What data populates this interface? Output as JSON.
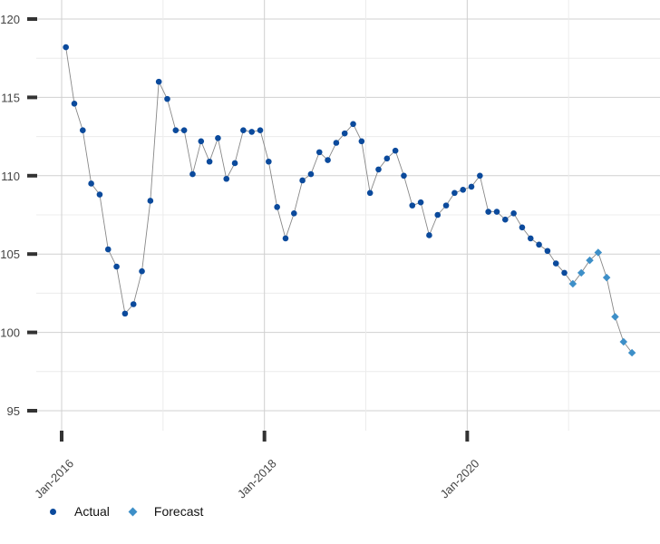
{
  "chart_data": {
    "type": "line",
    "title": "",
    "xlabel": "",
    "ylabel": "",
    "ylim": [
      95,
      120
    ],
    "yticks": [
      95,
      100,
      105,
      110,
      115,
      120
    ],
    "xticks": [
      {
        "date": "2016-01",
        "label": "Jan-2016"
      },
      {
        "date": "2018-01",
        "label": "Jan-2018"
      },
      {
        "date": "2020-01",
        "label": "Jan-2020"
      }
    ],
    "grid": true,
    "legend_position": "bottom-left",
    "series": [
      {
        "name": "Actual",
        "color": "#0b4a9c",
        "marker": "circle",
        "x": [
          "2016-01",
          "2016-02",
          "2016-03",
          "2016-04",
          "2016-05",
          "2016-06",
          "2016-07",
          "2016-08",
          "2016-09",
          "2016-10",
          "2016-11",
          "2016-12",
          "2017-01",
          "2017-02",
          "2017-03",
          "2017-04",
          "2017-05",
          "2017-06",
          "2017-07",
          "2017-08",
          "2017-09",
          "2017-10",
          "2017-11",
          "2017-12",
          "2018-01",
          "2018-02",
          "2018-03",
          "2018-04",
          "2018-05",
          "2018-06",
          "2018-07",
          "2018-08",
          "2018-09",
          "2018-10",
          "2018-11",
          "2018-12",
          "2019-01",
          "2019-02",
          "2019-03",
          "2019-04",
          "2019-05",
          "2019-06",
          "2019-07",
          "2019-08",
          "2019-09",
          "2019-10",
          "2019-11",
          "2019-12",
          "2020-01",
          "2020-02",
          "2020-03",
          "2020-04",
          "2020-05",
          "2020-06",
          "2020-07",
          "2020-08",
          "2020-09",
          "2020-10",
          "2020-11",
          "2020-12"
        ],
        "values": [
          118.2,
          114.6,
          112.9,
          109.5,
          108.8,
          105.3,
          104.2,
          101.2,
          101.8,
          103.9,
          108.4,
          116.0,
          114.9,
          112.9,
          112.9,
          110.1,
          112.2,
          110.9,
          112.4,
          109.8,
          110.8,
          112.9,
          112.8,
          112.9,
          110.9,
          108.0,
          106.0,
          107.6,
          109.7,
          110.1,
          111.5,
          111.0,
          112.1,
          112.7,
          113.3,
          112.2,
          108.9,
          110.4,
          111.1,
          111.6,
          110.0,
          108.1,
          108.3,
          106.2,
          107.5,
          108.1,
          108.9,
          109.1,
          109.3,
          110.0,
          107.7,
          107.7,
          107.2,
          107.6,
          106.7,
          106.0,
          105.6,
          105.2,
          104.4,
          103.8
        ]
      },
      {
        "name": "Forecast",
        "color": "#3d8fc8",
        "marker": "diamond",
        "x": [
          "2021-01",
          "2021-02",
          "2021-03",
          "2021-04",
          "2021-05",
          "2021-06",
          "2021-07",
          "2021-08"
        ],
        "values": [
          103.1,
          103.8,
          104.6,
          105.1,
          103.5,
          101.0,
          99.4,
          98.7
        ]
      }
    ]
  }
}
